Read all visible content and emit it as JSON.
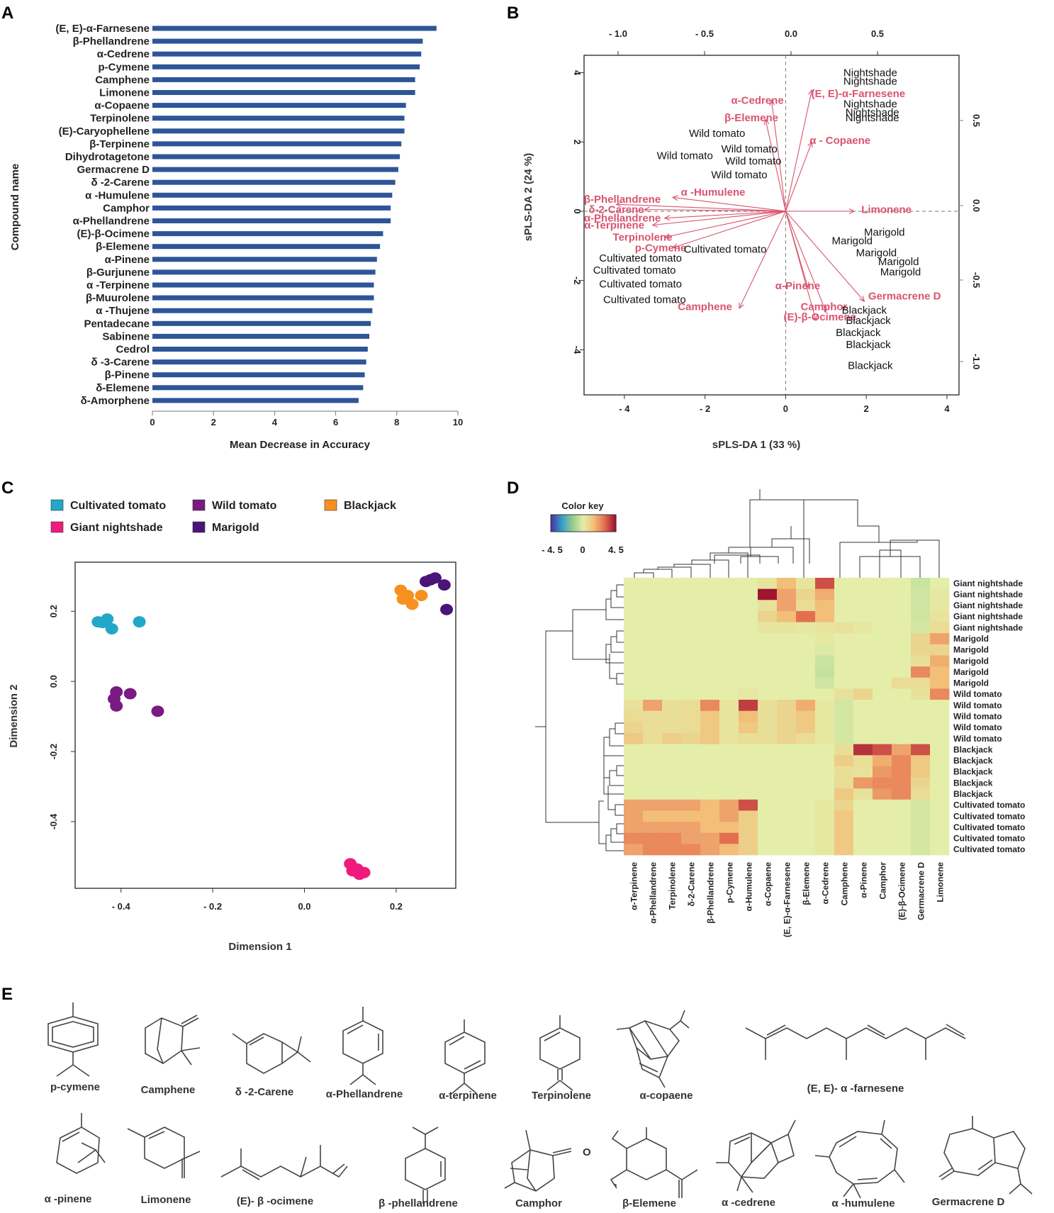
{
  "panels": {
    "a": "A",
    "b": "B",
    "c": "C",
    "d": "D",
    "e": "E"
  },
  "chart_data": [
    {
      "type": "bar",
      "orientation": "horizontal",
      "panel": "A",
      "ylabel": "Compound name",
      "xlabel": "Mean Decrease in Accuracy",
      "xlim": [
        0,
        10
      ],
      "xticks": [
        "0",
        "2",
        "4",
        "6",
        "8",
        "10"
      ],
      "bar_color": "#2e5597",
      "categories": [
        "(E, E)-α-Farnesene",
        "β-Phellandrene",
        "α-Cedrene",
        "p-Cymene",
        "Camphene",
        "Limonene",
        "α-Copaene",
        "Terpinolene",
        "(E)-Caryophellene",
        "β-Terpinene",
        "Dihydrotagetone",
        "Germacrene D",
        "δ -2-Carene",
        "α -Humulene",
        "Camphor",
        "α-Phellandrene",
        "(E)-β-Ocimene",
        "β-Elemene",
        "α-Pinene",
        "β-Gurjunene",
        "α -Terpinene",
        "β-Muurolene",
        "α -Thujene",
        "Pentadecane",
        "Sabinene",
        "Cedrol",
        "δ -3-Carene",
        "β-Pinene",
        "δ-Elemene",
        "δ-Amorphene"
      ],
      "values": [
        9.3,
        8.85,
        8.8,
        8.75,
        8.6,
        8.6,
        8.3,
        8.25,
        8.25,
        8.15,
        8.1,
        8.05,
        7.95,
        7.85,
        7.8,
        7.8,
        7.55,
        7.45,
        7.35,
        7.3,
        7.25,
        7.25,
        7.2,
        7.15,
        7.1,
        7.05,
        7.0,
        6.95,
        6.9,
        6.75
      ]
    },
    {
      "type": "scatter",
      "subtype": "biplot",
      "panel": "B",
      "xlabel": "sPLS-DA 1 (33 %)",
      "ylabel": "sPLS-DA 2 (24 %)",
      "xlim": [
        -5,
        4.3
      ],
      "ylim": [
        -5.3,
        4.5
      ],
      "xticks": [
        "- 4",
        "- 2",
        "0",
        "2",
        "4"
      ],
      "yticks": [
        "4",
        "2",
        "0",
        "-2",
        "-4"
      ],
      "top_ticks": [
        "- 1.0",
        "- 0.5",
        "0.0",
        "0.5"
      ],
      "right_ticks": [
        "0.5",
        "0.0",
        "-0.5",
        "-1.0"
      ],
      "sample_color": "#111111",
      "variable_color": "#d9546f",
      "samples": [
        {
          "label": "Nightshade",
          "x": 2.1,
          "y": 4.0
        },
        {
          "label": "Nightshade",
          "x": 2.1,
          "y": 3.75
        },
        {
          "label": "Nightshade",
          "x": 2.1,
          "y": 3.1
        },
        {
          "label": "Nightshade",
          "x": 2.15,
          "y": 2.85
        },
        {
          "label": "Nightshade",
          "x": 2.15,
          "y": 2.7
        },
        {
          "label": "Wild tomato",
          "x": -1.7,
          "y": 2.25
        },
        {
          "label": "Wild tomato",
          "x": -0.9,
          "y": 1.8
        },
        {
          "label": "Wild tomato",
          "x": -2.5,
          "y": 1.6
        },
        {
          "label": "Wild tomato",
          "x": -0.8,
          "y": 1.45
        },
        {
          "label": "Wild tomato",
          "x": -1.15,
          "y": 1.05
        },
        {
          "label": "Marigold",
          "x": 2.45,
          "y": -0.6
        },
        {
          "label": "Marigold",
          "x": 1.65,
          "y": -0.85
        },
        {
          "label": "Marigold",
          "x": 2.25,
          "y": -1.2
        },
        {
          "label": "Marigold",
          "x": 2.8,
          "y": -1.45
        },
        {
          "label": "Marigold",
          "x": 2.85,
          "y": -1.75
        },
        {
          "label": "Cultivated tomato",
          "x": -1.5,
          "y": -1.1
        },
        {
          "label": "Cultivated tomato",
          "x": -3.6,
          "y": -1.35
        },
        {
          "label": "Cultivated tomato",
          "x": -3.75,
          "y": -1.7
        },
        {
          "label": "Cultivated tomato",
          "x": -3.6,
          "y": -2.1
        },
        {
          "label": "Cultivated tomato",
          "x": -3.5,
          "y": -2.55
        },
        {
          "label": "Blackjack",
          "x": 1.95,
          "y": -2.85
        },
        {
          "label": "Blackjack",
          "x": 2.05,
          "y": -3.15
        },
        {
          "label": "Blackjack",
          "x": 1.8,
          "y": -3.5
        },
        {
          "label": "Blackjack",
          "x": 2.05,
          "y": -3.85
        },
        {
          "label": "Blackjack",
          "x": 2.1,
          "y": -4.45
        }
      ],
      "variables": [
        {
          "label": "(E, E)-α-Farnesene",
          "x": 0.65,
          "y": 3.5,
          "lx": 1.8,
          "ly": 3.4
        },
        {
          "label": "α-Cedrene",
          "x": -0.35,
          "y": 3.2,
          "lx": -0.7,
          "ly": 3.2
        },
        {
          "label": "β-Elemene",
          "x": -0.5,
          "y": 2.65,
          "lx": -0.85,
          "ly": 2.7
        },
        {
          "label": "α - Copaene",
          "x": 0.65,
          "y": 2.0,
          "lx": 1.35,
          "ly": 2.05
        },
        {
          "label": "α -Humulene",
          "x": -2.8,
          "y": 0.4,
          "lx": -1.8,
          "ly": 0.55
        },
        {
          "label": "β-Phellandrene",
          "x": -4.2,
          "y": 0.2,
          "lx": -4.05,
          "ly": 0.35
        },
        {
          "label": "δ-2-Carene",
          "x": -3.5,
          "y": 0.05,
          "lx": -4.2,
          "ly": 0.05
        },
        {
          "label": "α-Phellandrene",
          "x": -3.0,
          "y": -0.2,
          "lx": -4.05,
          "ly": -0.2
        },
        {
          "label": "α-Terpinene",
          "x": -3.3,
          "y": -0.4,
          "lx": -4.25,
          "ly": -0.4
        },
        {
          "label": "Limonene",
          "x": 1.7,
          "y": 0.0,
          "lx": 2.5,
          "ly": 0.05
        },
        {
          "label": "Terpinolene",
          "x": -3.0,
          "y": -0.75,
          "lx": -3.55,
          "ly": -0.75
        },
        {
          "label": "p-Cymene",
          "x": -2.8,
          "y": -1.05,
          "lx": -3.1,
          "ly": -1.05
        },
        {
          "label": "Camphene",
          "x": -1.15,
          "y": -2.8,
          "lx": -2.0,
          "ly": -2.75
        },
        {
          "label": "α-Pinene",
          "x": 0.55,
          "y": -2.2,
          "lx": 0.3,
          "ly": -2.15
        },
        {
          "label": "Germacrene D",
          "x": 1.95,
          "y": -2.6,
          "lx": 2.95,
          "ly": -2.45
        },
        {
          "label": "Camphor",
          "x": 1.0,
          "y": -2.9,
          "lx": 0.95,
          "ly": -2.75
        },
        {
          "label": "(E)-β-Ocimene",
          "x": 0.75,
          "y": -3.15,
          "lx": 0.85,
          "ly": -3.05
        }
      ]
    },
    {
      "type": "scatter",
      "panel": "C",
      "xlabel": "Dimension 1",
      "ylabel": "Dimension 2",
      "xlim": [
        -0.5,
        0.33
      ],
      "ylim": [
        -0.59,
        0.34
      ],
      "xticks": [
        "- 0.4",
        "- 0.2",
        "0.0",
        "0.2"
      ],
      "yticks": [
        "0.2",
        "0.0",
        "-0.2",
        "-0.4"
      ],
      "series": [
        {
          "name": "Cultivated tomato",
          "color": "#22a7c9",
          "x": [
            -0.45,
            -0.44,
            -0.43,
            -0.42,
            -0.36
          ],
          "y": [
            0.17,
            0.168,
            0.178,
            0.15,
            0.17
          ]
        },
        {
          "name": "Wild tomato",
          "color": "#7a1a83",
          "x": [
            -0.41,
            -0.415,
            -0.38,
            -0.41,
            -0.32
          ],
          "y": [
            -0.03,
            -0.05,
            -0.035,
            -0.07,
            -0.085
          ]
        },
        {
          "name": "Blackjack",
          "color": "#f7901e",
          "x": [
            0.21,
            0.225,
            0.215,
            0.255,
            0.235
          ],
          "y": [
            0.26,
            0.245,
            0.235,
            0.245,
            0.22
          ]
        },
        {
          "name": "Giant nightshade",
          "color": "#ee1a7c",
          "x": [
            0.1,
            0.115,
            0.13,
            0.105,
            0.12
          ],
          "y": [
            -0.52,
            -0.535,
            -0.545,
            -0.54,
            -0.55
          ]
        },
        {
          "name": "Marigold",
          "color": "#4b1478",
          "x": [
            0.265,
            0.275,
            0.285,
            0.305,
            0.31
          ],
          "y": [
            0.285,
            0.29,
            0.295,
            0.275,
            0.205
          ]
        }
      ],
      "legend_order": [
        "Cultivated tomato",
        "Wild tomato",
        "Blackjack",
        "Giant nightshade",
        "Marigold"
      ]
    },
    {
      "type": "heatmap",
      "panel": "D",
      "color_key": {
        "title": "Color key",
        "min": "- 4. 5",
        "mid": "0",
        "max": "4. 5"
      },
      "columns": [
        "α-Terpinene",
        "α-Phellandrene",
        "Terpinolene",
        "δ-2-Carene",
        "β-Phellandrene",
        "p-Cymene",
        "α-Humulene",
        "α-Copaene",
        "(E, E)-α-Farnesene",
        "β-Elemene",
        "α-Cedrene",
        "Camphene",
        "α-Pinene",
        "Camphor",
        "(E)-β-Ocimene",
        "Germacrene D",
        "Limonene"
      ],
      "rows": [
        "Giant nightshade",
        "Giant nightshade",
        "Giant nightshade",
        "Giant nightshade",
        "Giant nightshade",
        "Marigold",
        "Marigold",
        "Marigold",
        "Marigold",
        "Marigold",
        "Wild tomato",
        "Wild tomato",
        "Wild tomato",
        "Wild tomato",
        "Wild tomato",
        "Blackjack",
        "Blackjack",
        "Blackjack",
        "Blackjack",
        "Blackjack",
        "Cultivated tomato",
        "Cultivated tomato",
        "Cultivated tomato",
        "Cultivated tomato",
        "Cultivated tomato"
      ],
      "values": [
        [
          0,
          0,
          0,
          0,
          0,
          0,
          0,
          0.3,
          1.5,
          0.3,
          3.5,
          0,
          0,
          0,
          0,
          -0.5,
          0
        ],
        [
          0,
          0,
          0,
          0,
          0,
          0,
          0,
          4.5,
          2.0,
          0.8,
          1.8,
          0,
          0,
          0,
          0,
          -0.4,
          0.2
        ],
        [
          0,
          0,
          0,
          0,
          0,
          0,
          0,
          0.4,
          2.0,
          0.6,
          1.5,
          0,
          0,
          0,
          0,
          -0.4,
          0.2
        ],
        [
          0,
          0,
          0,
          0,
          0,
          0,
          0,
          0.8,
          1.5,
          3.0,
          1.5,
          0,
          0,
          0,
          0,
          -0.4,
          0.3
        ],
        [
          0,
          0,
          0,
          0,
          0,
          0,
          0,
          0.3,
          0.3,
          0.2,
          0.3,
          0.4,
          0.2,
          0,
          0,
          -0.3,
          0.6
        ],
        [
          0,
          0,
          0,
          0,
          0,
          0,
          0,
          0,
          0,
          0,
          0.2,
          0,
          0,
          0,
          0,
          0.8,
          2.0
        ],
        [
          0,
          0,
          0,
          0,
          0,
          0,
          0,
          0,
          0,
          0,
          -0.2,
          0,
          0,
          0,
          0,
          0.8,
          0.8
        ],
        [
          0,
          0,
          0,
          0,
          0,
          0,
          0,
          0,
          0,
          0,
          -0.5,
          0,
          0,
          0,
          0,
          0.5,
          1.8
        ],
        [
          0,
          0,
          0,
          0,
          0,
          0,
          0,
          0,
          0,
          0,
          -0.6,
          0,
          0,
          0,
          0,
          2.5,
          1.5
        ],
        [
          0,
          0,
          0,
          0,
          0,
          0,
          0,
          0,
          0,
          0,
          -0.4,
          0,
          0,
          0,
          0.6,
          0.6,
          1.5
        ],
        [
          0,
          0,
          0,
          0,
          0,
          0,
          0.2,
          0,
          0,
          0,
          0,
          0.4,
          0.8,
          0,
          0,
          0.4,
          2.5
        ],
        [
          0.4,
          2.0,
          0.5,
          0.6,
          2.5,
          0.3,
          3.8,
          0.5,
          0.8,
          1.8,
          0.2,
          -0.3,
          0,
          0,
          0,
          0,
          0
        ],
        [
          0.6,
          0.5,
          0.5,
          0.6,
          1.2,
          0.3,
          1.5,
          0.5,
          0.8,
          1.2,
          0.2,
          -0.3,
          0,
          0,
          0,
          0,
          0
        ],
        [
          0.8,
          0.5,
          0.5,
          0.6,
          1.2,
          0.3,
          1.2,
          0.5,
          0.8,
          1.2,
          0.2,
          -0.3,
          0,
          0,
          0,
          0,
          0
        ],
        [
          1.2,
          0.5,
          1.0,
          0.8,
          1.2,
          0.3,
          0.5,
          0.5,
          0.8,
          0.6,
          0.2,
          -0.3,
          0,
          0,
          0,
          0,
          0
        ],
        [
          0,
          0,
          0,
          0,
          0,
          0,
          0,
          0,
          0,
          0,
          0,
          0.5,
          4.0,
          3.5,
          2.0,
          3.5,
          0
        ],
        [
          0,
          0,
          0,
          0,
          0,
          0,
          0,
          0,
          0,
          0,
          0,
          1.0,
          0.5,
          1.8,
          2.5,
          1.2,
          0
        ],
        [
          0,
          0,
          0,
          0,
          0,
          0,
          0,
          0,
          0,
          0,
          0,
          0.5,
          0.4,
          2.2,
          2.5,
          1.2,
          0
        ],
        [
          0,
          0,
          0,
          0,
          0,
          0,
          0,
          0,
          0,
          0,
          0,
          0.6,
          2.2,
          2.5,
          2.5,
          0.8,
          0
        ],
        [
          0,
          0,
          0,
          0,
          0,
          0,
          0,
          0,
          0,
          0,
          0,
          1.2,
          0.4,
          2.2,
          2.5,
          0.6,
          0
        ],
        [
          2.0,
          2.0,
          2.0,
          2.0,
          1.5,
          2.0,
          3.5,
          0,
          0,
          0,
          0.2,
          0.8,
          0,
          0,
          0,
          -0.3,
          0
        ],
        [
          2.0,
          1.5,
          1.5,
          1.5,
          1.5,
          2.0,
          1.0,
          0,
          0,
          0,
          0.2,
          1.2,
          0,
          0,
          0,
          -0.3,
          0
        ],
        [
          2.0,
          2.0,
          2.0,
          2.0,
          1.5,
          1.5,
          1.0,
          0,
          0,
          0,
          0.2,
          1.2,
          0,
          0,
          0,
          -0.3,
          0
        ],
        [
          2.5,
          2.5,
          2.5,
          2.0,
          2.0,
          3.0,
          1.0,
          0,
          0,
          0,
          0.2,
          1.2,
          0,
          0,
          0,
          -0.3,
          0
        ],
        [
          2.0,
          2.5,
          2.5,
          2.5,
          2.0,
          1.5,
          1.0,
          0,
          0,
          0,
          0.2,
          1.2,
          0,
          0,
          0,
          -0.3,
          0
        ]
      ]
    }
  ],
  "structures": {
    "row1": [
      "p-cymene",
      "Camphene",
      "δ -2-Carene",
      "α-Phellandrene",
      "α-terpinene",
      "Terpinolene",
      "α-copaene",
      "(E, E)- α -farnesene"
    ],
    "row2": [
      "α -pinene",
      "Limonene",
      "(E)- β -ocimene",
      "β -phellandrene",
      "Camphor",
      "β-Elemene",
      "α -cedrene",
      "α -humulene",
      "Germacrene D"
    ],
    "camphor_o": "O"
  }
}
